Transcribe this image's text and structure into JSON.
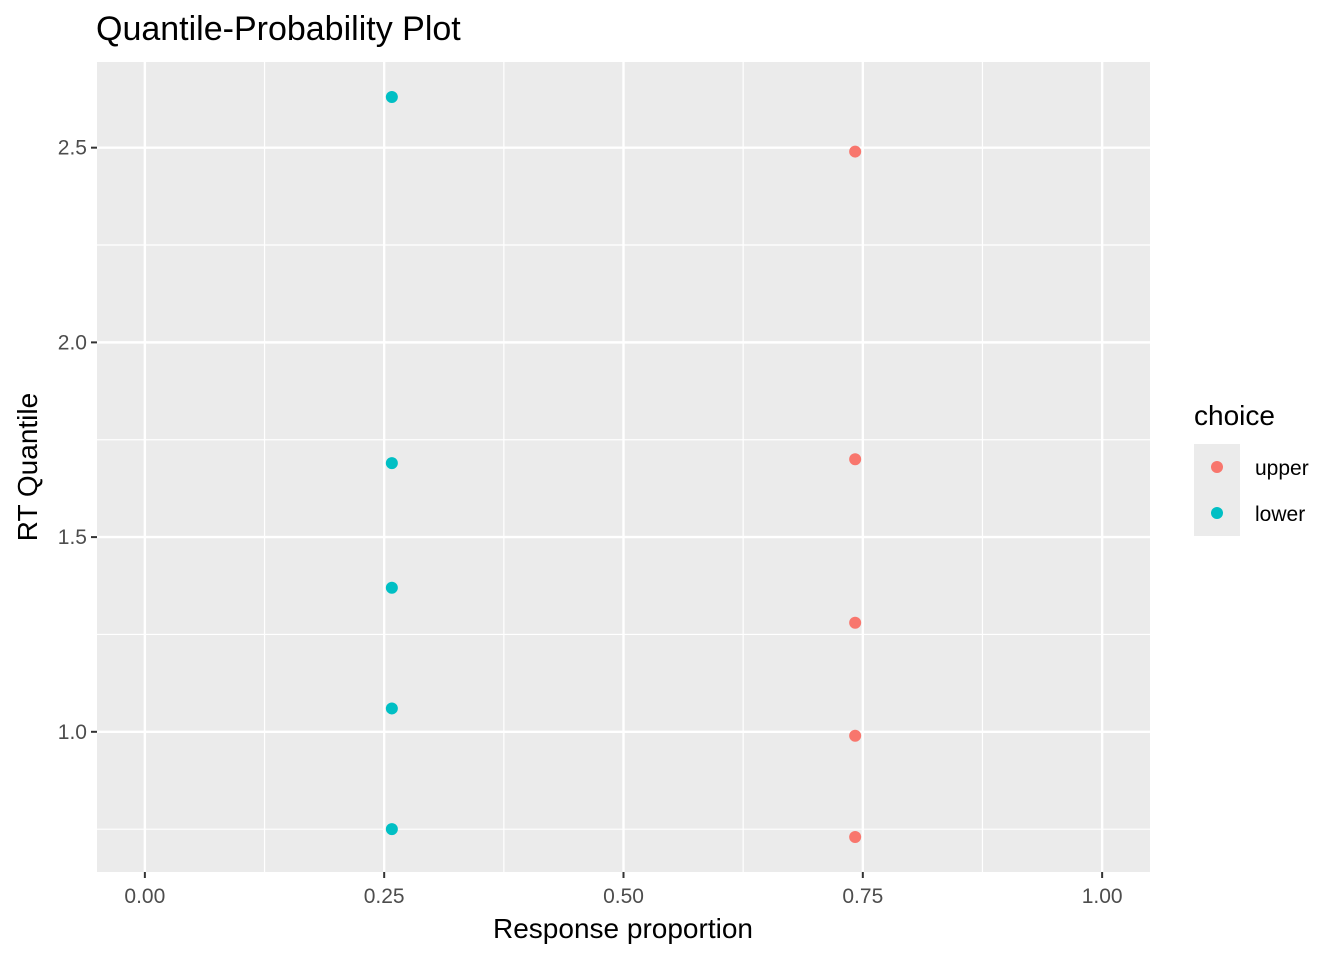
{
  "chart_data": {
    "type": "scatter",
    "title": "Quantile-Probability Plot",
    "xlabel": "Response proportion",
    "ylabel": "RT Quantile",
    "xlim": [
      -0.05,
      1.05
    ],
    "ylim": [
      0.64,
      2.72
    ],
    "x_ticks": [
      0.0,
      0.25,
      0.5,
      0.75,
      1.0
    ],
    "x_tick_labels": [
      "0.00",
      "0.25",
      "0.50",
      "0.75",
      "1.00"
    ],
    "y_ticks": [
      1.0,
      1.5,
      2.0,
      2.5
    ],
    "y_tick_labels": [
      "1.0",
      "1.5",
      "2.0",
      "2.5"
    ],
    "grid": true,
    "legend": {
      "title": "choice",
      "placement": "right"
    },
    "series": [
      {
        "name": "upper",
        "color": "#F8766D",
        "x": [
          0.742,
          0.742,
          0.742,
          0.742,
          0.742
        ],
        "y": [
          0.73,
          0.99,
          1.28,
          1.7,
          2.49
        ]
      },
      {
        "name": "lower",
        "color": "#00BFC4",
        "x": [
          0.258,
          0.258,
          0.258,
          0.258,
          0.258
        ],
        "y": [
          0.75,
          1.06,
          1.37,
          1.69,
          2.63
        ]
      }
    ]
  }
}
